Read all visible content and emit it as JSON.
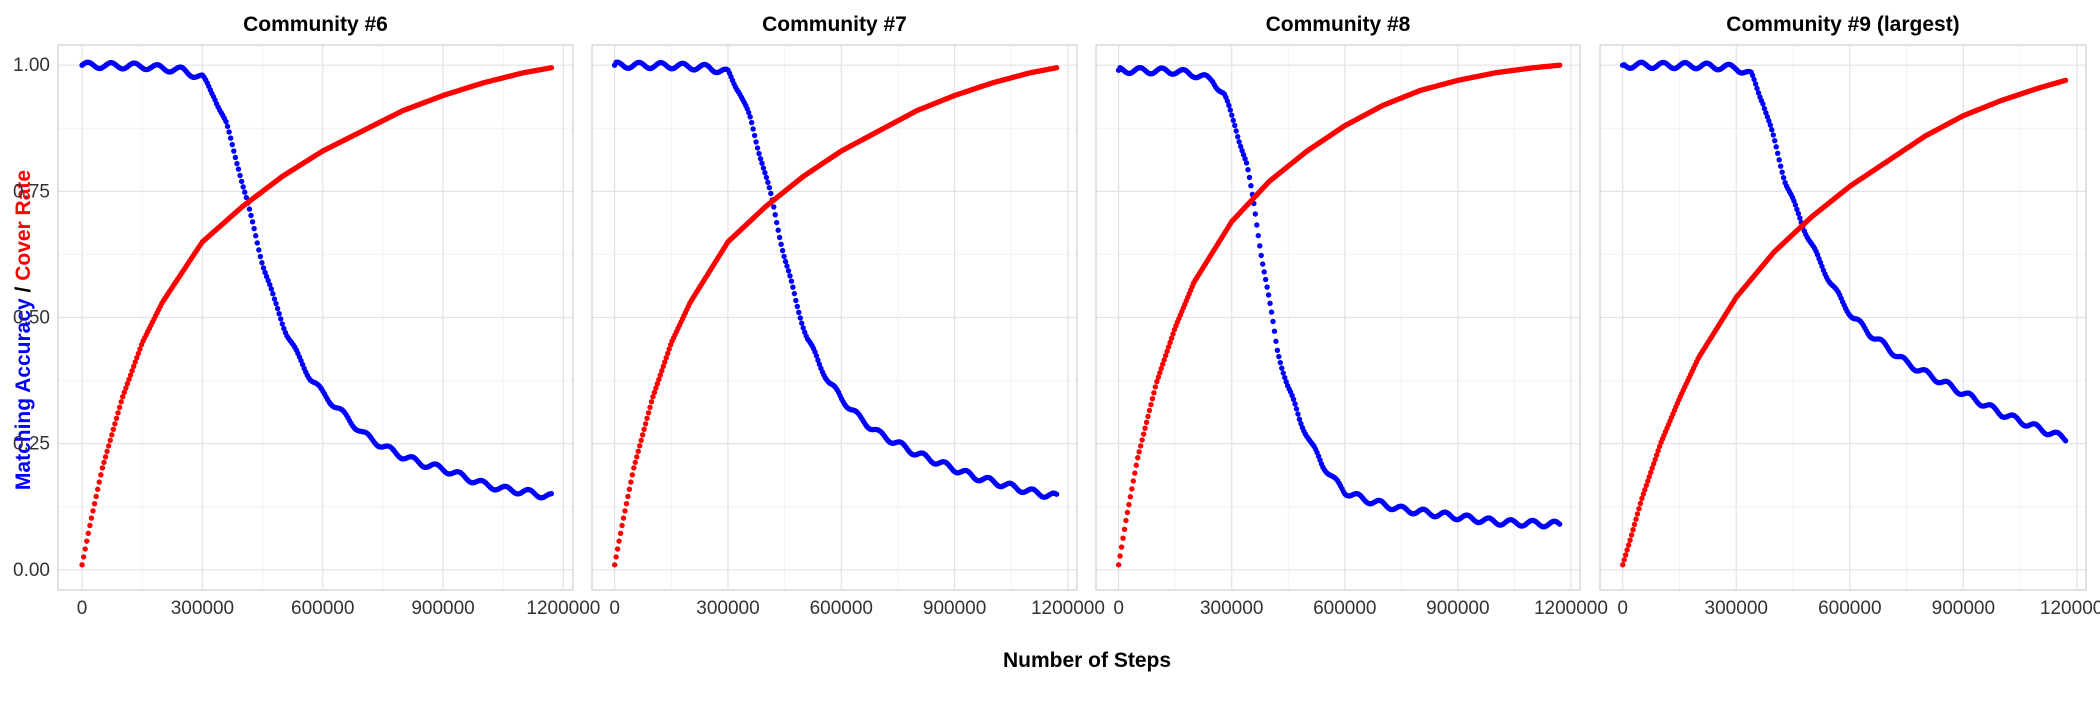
{
  "figure": {
    "xlabel": "Number of Steps",
    "ylabel_parts": [
      {
        "text": "Matching Accuracy",
        "color": "#0000ff"
      },
      {
        "text": " / ",
        "color": "#000000"
      },
      {
        "text": "Cover Rate",
        "color": "#ff0000"
      }
    ]
  },
  "chart_data": [
    {
      "type": "scatter",
      "title": "Community #6",
      "xlim": [
        0,
        1200000
      ],
      "ylim": [
        0,
        1
      ],
      "xticks": [
        "0",
        "300000",
        "600000",
        "900000",
        "1200000"
      ],
      "yticks": [
        "0.00",
        "0.25",
        "0.50",
        "0.75",
        "1.00"
      ],
      "grid": true,
      "series": [
        {
          "color": "#0000ff",
          "x": [
            0,
            150000,
            250000,
            300000,
            330000,
            360000,
            390000,
            420000,
            450000,
            480000,
            510000,
            540000,
            570000,
            600000,
            650000,
            700000,
            750000,
            800000,
            850000,
            900000,
            950000,
            1000000,
            1050000,
            1100000,
            1170000
          ],
          "y": [
            1.0,
            0.998,
            0.99,
            0.975,
            0.94,
            0.88,
            0.8,
            0.7,
            0.61,
            0.53,
            0.47,
            0.42,
            0.38,
            0.35,
            0.31,
            0.27,
            0.245,
            0.225,
            0.21,
            0.2,
            0.185,
            0.17,
            0.16,
            0.155,
            0.145
          ]
        },
        {
          "color": "#ff0000",
          "x": [
            0,
            20000,
            50000,
            100000,
            150000,
            200000,
            300000,
            400000,
            500000,
            600000,
            700000,
            800000,
            900000,
            1000000,
            1100000,
            1170000
          ],
          "y": [
            0.01,
            0.09,
            0.2,
            0.34,
            0.45,
            0.53,
            0.65,
            0.72,
            0.78,
            0.83,
            0.87,
            0.91,
            0.94,
            0.965,
            0.985,
            0.995
          ]
        }
      ]
    },
    {
      "type": "scatter",
      "title": "Community #7",
      "xlim": [
        0,
        1200000
      ],
      "ylim": [
        0,
        1
      ],
      "xticks": [
        "0",
        "300000",
        "600000",
        "900000",
        "1200000"
      ],
      "yticks": [
        "0.00",
        "0.25",
        "0.50",
        "0.75",
        "1.00"
      ],
      "grid": true,
      "series": [
        {
          "color": "#0000ff",
          "x": [
            0,
            150000,
            250000,
            300000,
            330000,
            360000,
            390000,
            420000,
            450000,
            480000,
            510000,
            540000,
            570000,
            600000,
            650000,
            700000,
            750000,
            800000,
            850000,
            900000,
            950000,
            1000000,
            1050000,
            1100000,
            1170000
          ],
          "y": [
            1.0,
            0.999,
            0.995,
            0.985,
            0.95,
            0.89,
            0.81,
            0.72,
            0.62,
            0.53,
            0.46,
            0.41,
            0.37,
            0.34,
            0.3,
            0.27,
            0.25,
            0.23,
            0.215,
            0.2,
            0.185,
            0.175,
            0.165,
            0.155,
            0.145
          ]
        },
        {
          "color": "#ff0000",
          "x": [
            0,
            20000,
            50000,
            100000,
            150000,
            200000,
            300000,
            400000,
            500000,
            600000,
            700000,
            800000,
            900000,
            1000000,
            1100000,
            1170000
          ],
          "y": [
            0.01,
            0.09,
            0.2,
            0.34,
            0.45,
            0.53,
            0.65,
            0.72,
            0.78,
            0.83,
            0.87,
            0.91,
            0.94,
            0.965,
            0.985,
            0.995
          ]
        }
      ]
    },
    {
      "type": "scatter",
      "title": "Community #8",
      "xlim": [
        0,
        1200000
      ],
      "ylim": [
        0,
        1
      ],
      "xticks": [
        "0",
        "300000",
        "600000",
        "900000",
        "1200000"
      ],
      "yticks": [
        "0.00",
        "0.25",
        "0.50",
        "0.75",
        "1.00"
      ],
      "grid": true,
      "series": [
        {
          "color": "#0000ff",
          "x": [
            0,
            150000,
            200000,
            250000,
            280000,
            310000,
            340000,
            360000,
            380000,
            400000,
            420000,
            450000,
            480000,
            510000,
            540000,
            570000,
            600000,
            650000,
            700000,
            750000,
            800000,
            850000,
            900000,
            950000,
            1000000,
            1050000,
            1100000,
            1170000
          ],
          "y": [
            0.99,
            0.988,
            0.982,
            0.97,
            0.94,
            0.88,
            0.8,
            0.72,
            0.62,
            0.53,
            0.44,
            0.36,
            0.3,
            0.25,
            0.21,
            0.18,
            0.155,
            0.14,
            0.13,
            0.12,
            0.115,
            0.11,
            0.105,
            0.1,
            0.095,
            0.093,
            0.092,
            0.09
          ]
        },
        {
          "color": "#ff0000",
          "x": [
            0,
            20000,
            50000,
            100000,
            150000,
            200000,
            300000,
            400000,
            500000,
            600000,
            700000,
            800000,
            900000,
            1000000,
            1100000,
            1170000
          ],
          "y": [
            0.01,
            0.1,
            0.22,
            0.37,
            0.48,
            0.57,
            0.69,
            0.77,
            0.83,
            0.88,
            0.92,
            0.95,
            0.97,
            0.985,
            0.995,
            1.0
          ]
        }
      ]
    },
    {
      "type": "scatter",
      "title": "Community #9 (largest)",
      "xlim": [
        0,
        1200000
      ],
      "ylim": [
        0,
        1
      ],
      "xticks": [
        "0",
        "300000",
        "600000",
        "900000",
        "1200000"
      ],
      "yticks": [
        "0.00",
        "0.25",
        "0.50",
        "0.75",
        "1.00"
      ],
      "grid": true,
      "series": [
        {
          "color": "#0000ff",
          "x": [
            0,
            200000,
            300000,
            340000,
            370000,
            400000,
            430000,
            460000,
            490000,
            520000,
            550000,
            580000,
            610000,
            650000,
            700000,
            750000,
            800000,
            850000,
            900000,
            950000,
            1000000,
            1050000,
            1100000,
            1170000
          ],
          "y": [
            1.0,
            0.999,
            0.995,
            0.98,
            0.93,
            0.85,
            0.77,
            0.71,
            0.66,
            0.61,
            0.57,
            0.53,
            0.5,
            0.47,
            0.44,
            0.41,
            0.39,
            0.37,
            0.35,
            0.33,
            0.31,
            0.295,
            0.28,
            0.26
          ]
        },
        {
          "color": "#ff0000",
          "x": [
            0,
            20000,
            50000,
            100000,
            150000,
            200000,
            300000,
            400000,
            500000,
            600000,
            700000,
            800000,
            900000,
            1000000,
            1100000,
            1170000
          ],
          "y": [
            0.01,
            0.06,
            0.14,
            0.25,
            0.34,
            0.42,
            0.54,
            0.63,
            0.7,
            0.76,
            0.81,
            0.86,
            0.9,
            0.93,
            0.955,
            0.97
          ]
        }
      ]
    }
  ]
}
